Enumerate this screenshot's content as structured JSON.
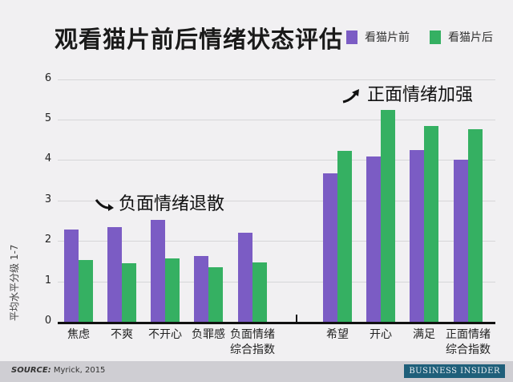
{
  "title": "观看猫片前后情绪状态评估",
  "legend": [
    {
      "label": "看猫片前",
      "color": "#7b5cc4"
    },
    {
      "label": "看猫片后",
      "color": "#35b062"
    }
  ],
  "annotations": {
    "negative": "负面情绪退散",
    "positive": "正面情绪加强"
  },
  "ylabel": "平均水平分级 1-7",
  "footer": {
    "source_label": "SOURCE:",
    "source_text": " Myrick, 2015",
    "brand": "BUSINESS INSIDER"
  },
  "chart_data": {
    "type": "bar",
    "title": "观看猫片前后情绪状态评估",
    "xlabel": "",
    "ylabel": "平均水平分级 1-7",
    "ylim": [
      0,
      6
    ],
    "yticks": [
      0,
      1,
      2,
      3,
      4,
      5,
      6
    ],
    "grid": true,
    "legend_position": "top-right",
    "categories": [
      "焦虑",
      "不爽",
      "不开心",
      "负罪感",
      "负面情绪综合指数",
      "希望",
      "开心",
      "满足",
      "正面情绪综合指数"
    ],
    "series": [
      {
        "name": "看猫片前",
        "color": "#7b5cc4",
        "values": [
          2.28,
          2.35,
          2.52,
          1.62,
          2.2,
          3.68,
          4.08,
          4.24,
          4.0
        ]
      },
      {
        "name": "看猫片后",
        "color": "#35b062",
        "values": [
          1.52,
          1.44,
          1.57,
          1.34,
          1.46,
          4.22,
          5.23,
          4.85,
          4.77
        ]
      }
    ],
    "annotations": [
      "负面情绪退散",
      "正面情绪加强"
    ]
  },
  "xlabels": [
    [
      "焦虑"
    ],
    [
      "不爽"
    ],
    [
      "不开心"
    ],
    [
      "负罪感"
    ],
    [
      "负面情绪",
      "综合指数"
    ],
    [
      "希望"
    ],
    [
      "开心"
    ],
    [
      "满足"
    ],
    [
      "正面情绪",
      "综合指数"
    ]
  ]
}
